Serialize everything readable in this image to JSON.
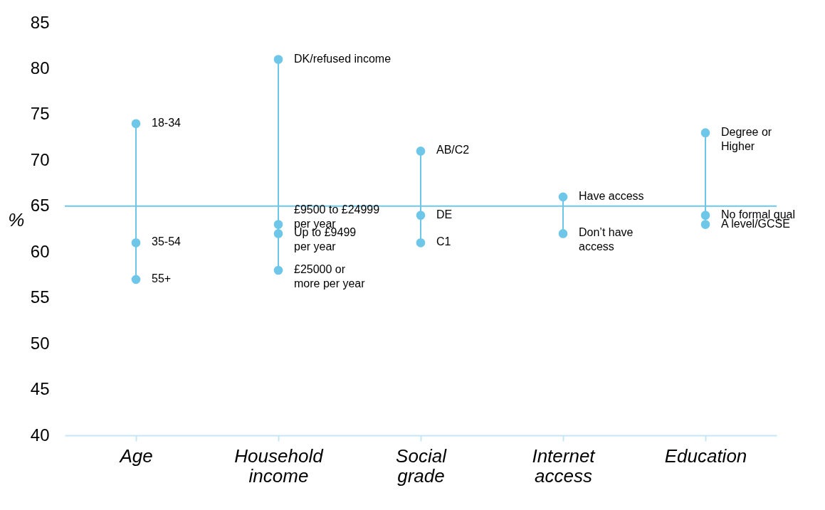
{
  "chart_data": {
    "type": "line",
    "ylabel": "%",
    "categories": [
      "Age",
      "Household income",
      "Social grade",
      "Internet access",
      "Education"
    ],
    "series": [
      {
        "color": "#6ec6e8",
        "x": [
          "Age",
          "Age",
          "Age"
        ],
        "values": [
          74,
          61,
          57
        ]
      },
      {
        "color": "#6ec6e8",
        "x": [
          "Household income",
          "Household income",
          "Household income",
          "Household income"
        ],
        "values": [
          81,
          63,
          62,
          58
        ]
      },
      {
        "color": "#6ec6e8",
        "x": [
          "Social grade",
          "Social grade",
          "Social grade"
        ],
        "values": [
          71,
          64,
          61
        ]
      },
      {
        "color": "#6ec6e8",
        "x": [
          "Internet access",
          "Internet access"
        ],
        "values": [
          66,
          62
        ]
      },
      {
        "color": "#6ec6e8",
        "x": [
          "Education",
          "Education",
          "Education"
        ],
        "values": [
          73,
          64,
          63
        ]
      }
    ],
    "marker": "circle",
    "line_style": "solid",
    "grid": false,
    "legend": false,
    "ylim": [
      40,
      85
    ],
    "yticks": [
      40,
      45,
      50,
      55,
      60,
      65,
      70,
      75,
      80,
      85
    ],
    "ref_lines": [
      {
        "axis": "y",
        "value": 65,
        "color": "#6ec6e8"
      }
    ],
    "annotations": [
      {
        "text": "18-34",
        "x": "Age",
        "y": 74
      },
      {
        "text": "35-54",
        "x": "Age",
        "y": 61
      },
      {
        "text": "55+",
        "x": "Age",
        "y": 57
      },
      {
        "text": "DK/refused income",
        "x": "Household income",
        "y": 81
      },
      {
        "text": "£9500 to £24999\nper year",
        "x": "Household income",
        "y": 63
      },
      {
        "text": "Up to £9499\nper year",
        "x": "Household income",
        "y": 62
      },
      {
        "text": "£25000 or\nmore per year",
        "x": "Household income",
        "y": 58
      },
      {
        "text": "AB/C2",
        "x": "Social grade",
        "y": 71
      },
      {
        "text": "DE",
        "x": "Social grade",
        "y": 64
      },
      {
        "text": "C1",
        "x": "Social grade",
        "y": 61
      },
      {
        "text": "Have access",
        "x": "Internet access",
        "y": 66
      },
      {
        "text": "Don’t have\naccess",
        "x": "Internet access",
        "y": 62
      },
      {
        "text": "Degree or\nHigher",
        "x": "Education",
        "y": 73
      },
      {
        "text": "No formal qual",
        "x": "Education",
        "y": 64
      },
      {
        "text": "A level/GCSE",
        "x": "Education",
        "y": 63
      }
    ]
  }
}
